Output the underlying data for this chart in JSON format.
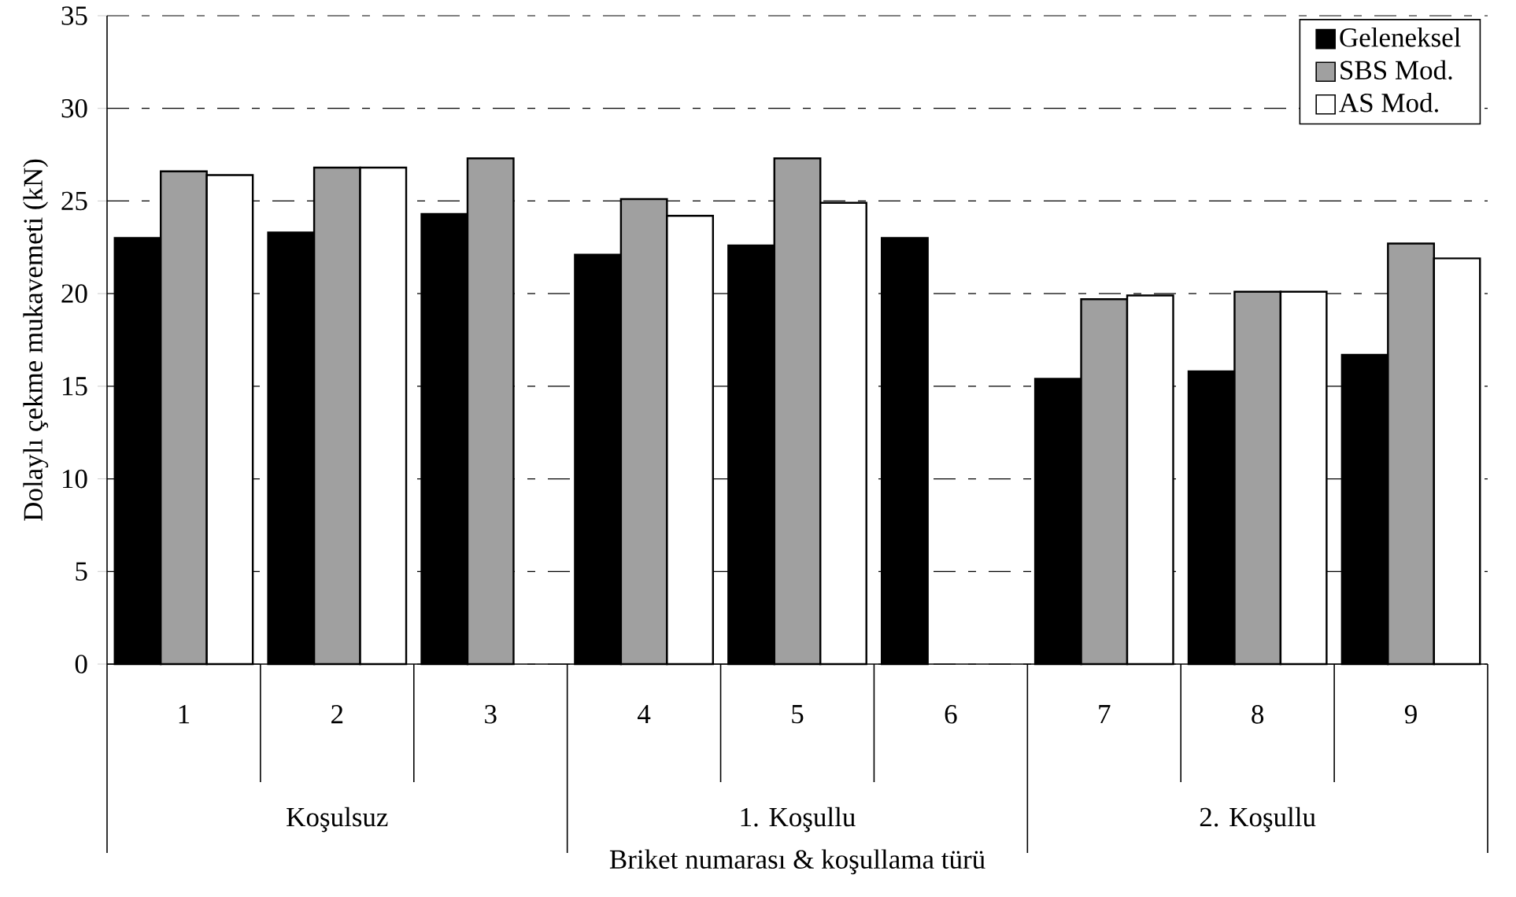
{
  "chart_data": {
    "type": "bar",
    "xlabel": "Briket numarası & koşullama türü",
    "ylabel": "Dolaylı çekme mukavemeti (kN)",
    "categories": [
      "1",
      "2",
      "3",
      "4",
      "5",
      "6",
      "7",
      "8",
      "9"
    ],
    "series": [
      {
        "name": "Geleneksel",
        "color": "#000000",
        "values": [
          23.0,
          23.3,
          24.3,
          22.1,
          22.6,
          23.0,
          15.4,
          15.8,
          16.7
        ]
      },
      {
        "name": "SBS Mod.",
        "color": "#a0a0a0",
        "values": [
          26.6,
          26.8,
          27.3,
          25.1,
          27.3,
          null,
          19.7,
          20.1,
          22.7
        ]
      },
      {
        "name": "AS Mod.",
        "color": "#ffffff",
        "values": [
          26.4,
          26.8,
          null,
          24.2,
          24.9,
          null,
          19.9,
          20.1,
          21.9
        ]
      }
    ],
    "annotations": [
      "Koşulsuz",
      "1. Koşullu",
      "2. Koşullu"
    ],
    "ylim": [
      0,
      35
    ],
    "yticks": [
      0,
      5,
      10,
      15,
      20,
      25,
      30,
      35
    ],
    "grid": "y",
    "legend": "top right"
  }
}
